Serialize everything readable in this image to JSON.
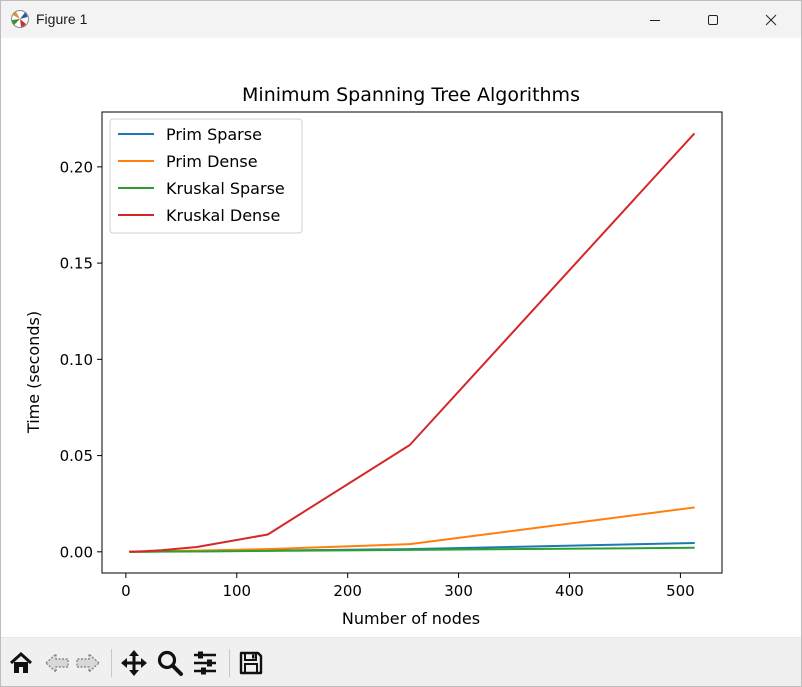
{
  "window": {
    "title": "Figure 1",
    "app_icon": "matplotlib-icon",
    "controls": [
      "minimize-icon",
      "maximize-icon",
      "close-icon"
    ]
  },
  "toolbar": {
    "tools": [
      "home-icon",
      "back-arrow-icon",
      "forward-arrow-icon",
      "pan-move-icon",
      "zoom-magnifier-icon",
      "configure-subplots-icon",
      "save-floppy-icon"
    ]
  },
  "chart_data": {
    "type": "line",
    "title": "Minimum Spanning Tree Algorithms",
    "xlabel": "Number of nodes",
    "ylabel": "Time (seconds)",
    "xlim": [
      -21.5,
      537.5
    ],
    "ylim": [
      -0.011,
      0.2285
    ],
    "x_ticks": [
      0,
      100,
      200,
      300,
      400,
      500
    ],
    "x_tick_labels": [
      "0",
      "100",
      "200",
      "300",
      "400",
      "500"
    ],
    "y_ticks": [
      0.0,
      0.05,
      0.1,
      0.15,
      0.2
    ],
    "y_tick_labels": [
      "0.00",
      "0.05",
      "0.10",
      "0.15",
      "0.20"
    ],
    "grid": false,
    "legend_position": "upper-left",
    "x": [
      4,
      8,
      16,
      32,
      64,
      128,
      256,
      512
    ],
    "series": [
      {
        "name": "Prim Sparse",
        "color": "#1f77b4",
        "values": [
          2e-05,
          4e-05,
          8e-05,
          0.00015,
          0.0003,
          0.0006,
          0.0014,
          0.0046
        ]
      },
      {
        "name": "Prim Dense",
        "color": "#ff7f0e",
        "values": [
          3e-05,
          6e-05,
          0.00012,
          0.0003,
          0.0006,
          0.0014,
          0.004,
          0.023
        ]
      },
      {
        "name": "Kruskal Sparse",
        "color": "#2ca02c",
        "values": [
          2e-05,
          3e-05,
          6e-05,
          0.0001,
          0.0002,
          0.0005,
          0.001,
          0.0021
        ]
      },
      {
        "name": "Kruskal Dense",
        "color": "#d62728",
        "values": [
          5e-05,
          0.0001,
          0.0003,
          0.0008,
          0.0025,
          0.009,
          0.0555,
          0.217
        ]
      }
    ]
  }
}
